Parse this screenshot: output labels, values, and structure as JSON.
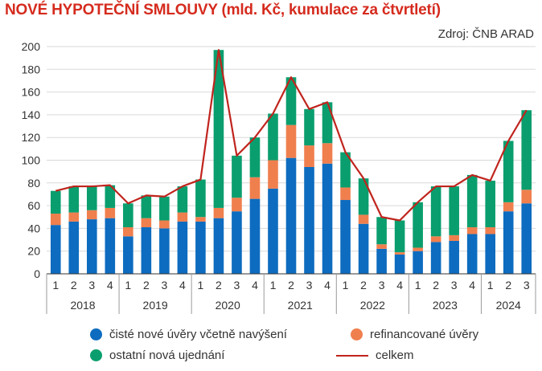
{
  "chart_data": {
    "type": "bar",
    "stacked": true,
    "title": "NOVÉ HYPOTEČNÍ SMLOUVY (mld. Kč, kumulace za čtvrtletí)",
    "source": "Zdroj: ČNB ARAD",
    "ylim": [
      0,
      200
    ],
    "yticks": [
      0,
      20,
      40,
      60,
      80,
      100,
      120,
      140,
      160,
      180,
      200
    ],
    "grid": true,
    "legend_position": "bottom",
    "categories": [
      "1",
      "2",
      "3",
      "4",
      "1",
      "2",
      "3",
      "4",
      "1",
      "2",
      "3",
      "4",
      "1",
      "2",
      "3",
      "4",
      "1",
      "2",
      "3",
      "4",
      "1",
      "2",
      "3",
      "4",
      "1",
      "2",
      "3"
    ],
    "years": [
      {
        "label": "2018",
        "count": 4
      },
      {
        "label": "2019",
        "count": 4
      },
      {
        "label": "2020",
        "count": 4
      },
      {
        "label": "2021",
        "count": 4
      },
      {
        "label": "2022",
        "count": 4
      },
      {
        "label": "2023",
        "count": 4
      },
      {
        "label": "2024",
        "count": 3
      }
    ],
    "series": [
      {
        "name": "čisté nové úvěry včetně navýšení",
        "color": "#0d6cbf",
        "values": [
          43,
          46,
          48,
          49,
          33,
          41,
          40,
          46,
          46,
          49,
          55,
          66,
          75,
          102,
          94,
          97,
          65,
          44,
          22,
          17,
          20,
          28,
          29,
          35,
          35,
          55,
          62
        ]
      },
      {
        "name": "refinancované úvěry",
        "color": "#f07f4e",
        "values": [
          10,
          8,
          8,
          9,
          8,
          8,
          7,
          8,
          4,
          9,
          12,
          19,
          25,
          29,
          19,
          18,
          11,
          8,
          4,
          2,
          3,
          5,
          5,
          6,
          6,
          8,
          12
        ]
      },
      {
        "name": "ostatní nová ujednání",
        "color": "#0a9e6e",
        "values": [
          20,
          23,
          21,
          20,
          21,
          20,
          21,
          23,
          33,
          139,
          37,
          35,
          41,
          42,
          32,
          36,
          31,
          32,
          24,
          28,
          40,
          44,
          43,
          46,
          41,
          54,
          70
        ]
      }
    ],
    "line": {
      "name": "celkem",
      "color": "#c0241d",
      "values": [
        73,
        77,
        77,
        78,
        62,
        69,
        68,
        77,
        83,
        197,
        104,
        120,
        141,
        173,
        145,
        151,
        107,
        84,
        50,
        47,
        63,
        77,
        77,
        87,
        82,
        117,
        144
      ]
    }
  },
  "legend": [
    {
      "label": "čisté nové úvěry včetně navýšení",
      "color": "#0d6cbf",
      "kind": "dot"
    },
    {
      "label": "refinancované úvěry",
      "color": "#f07f4e",
      "kind": "dot"
    },
    {
      "label": "ostatní nová ujednání",
      "color": "#0a9e6e",
      "kind": "dot"
    },
    {
      "label": "celkem",
      "color": "#c0241d",
      "kind": "line"
    }
  ]
}
